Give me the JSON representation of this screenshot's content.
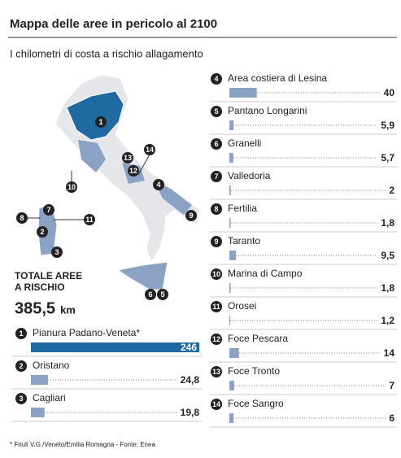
{
  "chart_data": {
    "type": "bar",
    "title": "Mappa delle aree in pericolo al 2100",
    "subtitle": "I chilometri di costa a rischio allagamento",
    "categories": [
      "Pianura Padano-Veneta*",
      "Oristano",
      "Cagliari",
      "Area costiera di Lesina",
      "Pantano Longarini",
      "Granelli",
      "Valledoria",
      "Fertilia",
      "Taranto",
      "Marina di Campo",
      "Orosei",
      "Foce Pescara",
      "Foce Tronto",
      "Foce Sangro"
    ],
    "ranks": [
      "1",
      "2",
      "3",
      "4",
      "5",
      "6",
      "7",
      "8",
      "9",
      "10",
      "11",
      "12",
      "13",
      "14"
    ],
    "values": [
      246,
      24.8,
      19.8,
      40,
      5.9,
      5.7,
      2,
      1.8,
      9.5,
      1.8,
      1.2,
      14,
      7,
      6
    ],
    "value_labels": [
      "246",
      "24,8",
      "19,8",
      "40",
      "5,9",
      "5,7",
      "2",
      "1,8",
      "9,5",
      "1,8",
      "1,2",
      "14",
      "7",
      "6"
    ],
    "colors": [
      "#1f6aa3",
      "#8aa2c4"
    ],
    "total_label": [
      "TOTALE AREE",
      "A RISCHIO"
    ],
    "total": 385.5,
    "total_label_value": "385,5",
    "total_unit": "km",
    "footnote": "* Friuli V.G./Veneto/Emilia Romagna - Fonte: Enea"
  }
}
